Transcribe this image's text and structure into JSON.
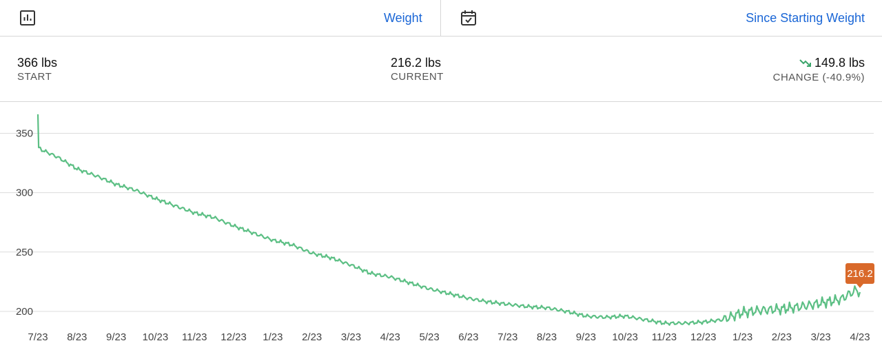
{
  "toolbar": {
    "left_icon": "bar-chart-icon",
    "metric_label": "Weight",
    "right_icon": "calendar-check-icon",
    "range_label": "Since Starting Weight"
  },
  "stats": {
    "start_value": "366 lbs",
    "start_label": "START",
    "current_value": "216.2 lbs",
    "current_label": "CURRENT",
    "change_icon": "trending-down-icon",
    "change_value": "149.8 lbs",
    "change_label": "CHANGE (-40.9%)"
  },
  "colors": {
    "line": "#5cbf84",
    "marker": "#d9692a",
    "link": "#1a66d6"
  },
  "chart_data": {
    "type": "line",
    "title": "",
    "xlabel": "",
    "ylabel": "",
    "x_ticks": [
      "7/23",
      "8/23",
      "9/23",
      "10/23",
      "11/23",
      "12/23",
      "1/23",
      "2/23",
      "3/23",
      "4/23",
      "5/23",
      "6/23",
      "7/23",
      "8/23",
      "9/23",
      "10/23",
      "11/23",
      "12/23",
      "1/23",
      "2/23",
      "3/23",
      "4/23"
    ],
    "y_ticks": [
      200,
      250,
      300,
      350
    ],
    "ylim": [
      193,
      370
    ],
    "grid": "horizontal",
    "series": [
      {
        "x": [
          0,
          0.02,
          0.1,
          0.5,
          1,
          1.5,
          2,
          2.5,
          3,
          3.5,
          4,
          4.5,
          5,
          5.5,
          6,
          6.5,
          7,
          7.5,
          8,
          8.5,
          9,
          9.5,
          10,
          10.5,
          11,
          11.5,
          12,
          12.5,
          13,
          13.5,
          14,
          14.5,
          15,
          15.5,
          16,
          16.5,
          17,
          17.5,
          18,
          18.5,
          19,
          19.5,
          20,
          20.5,
          20.9,
          21
        ],
        "y": [
          366,
          338,
          336,
          330,
          320,
          314,
          307,
          302,
          295,
          289,
          283,
          279,
          272,
          266,
          260,
          256,
          249,
          245,
          239,
          232,
          229,
          224,
          219,
          215,
          211,
          208,
          206,
          204,
          203,
          200,
          196,
          195,
          196,
          193,
          190,
          190,
          191,
          193,
          199,
          201,
          202,
          204,
          207,
          210,
          218,
          216.2
        ]
      }
    ],
    "last_point_label": "216.2"
  }
}
